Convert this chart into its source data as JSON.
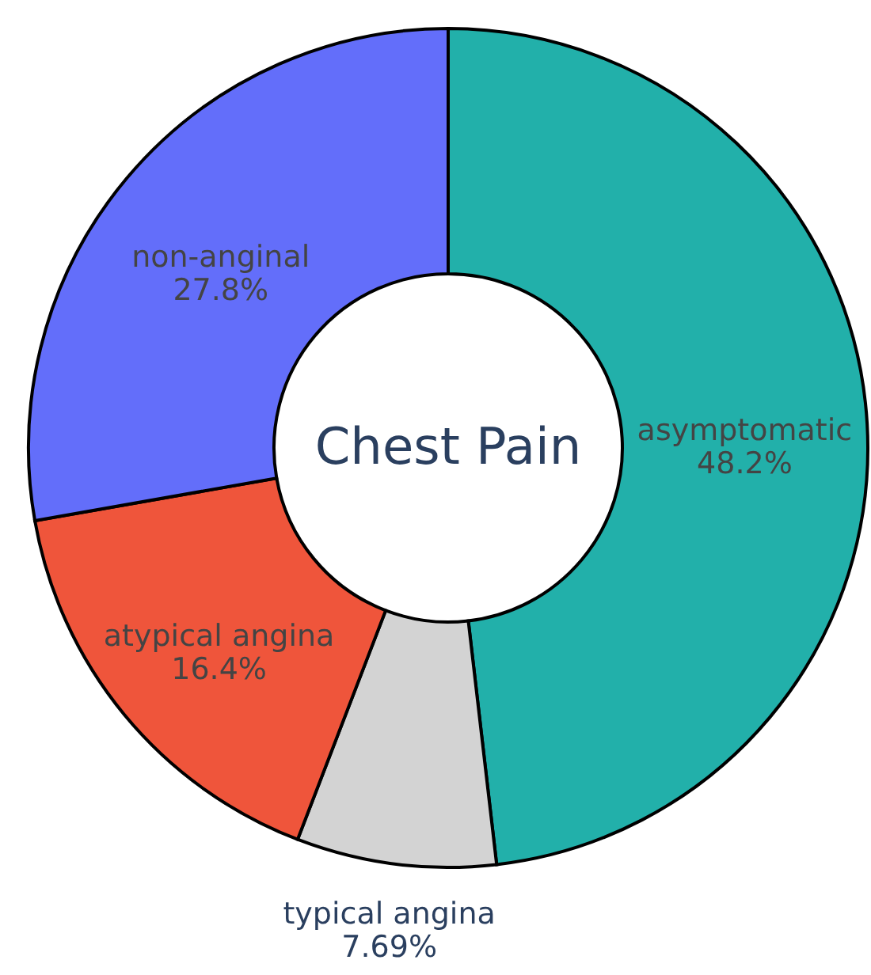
{
  "chart_data": {
    "type": "donut",
    "title": "Chest Pain",
    "categories": [
      "asymptomatic",
      "typical angina",
      "atypical angina",
      "non-anginal"
    ],
    "values": [
      48.2,
      7.69,
      16.4,
      27.8
    ],
    "value_labels": [
      "48.2%",
      "7.69%",
      "16.4%",
      "27.8%"
    ],
    "colors": [
      "#22b0aa",
      "#d3d3d3",
      "#ef553b",
      "#636efa"
    ]
  }
}
